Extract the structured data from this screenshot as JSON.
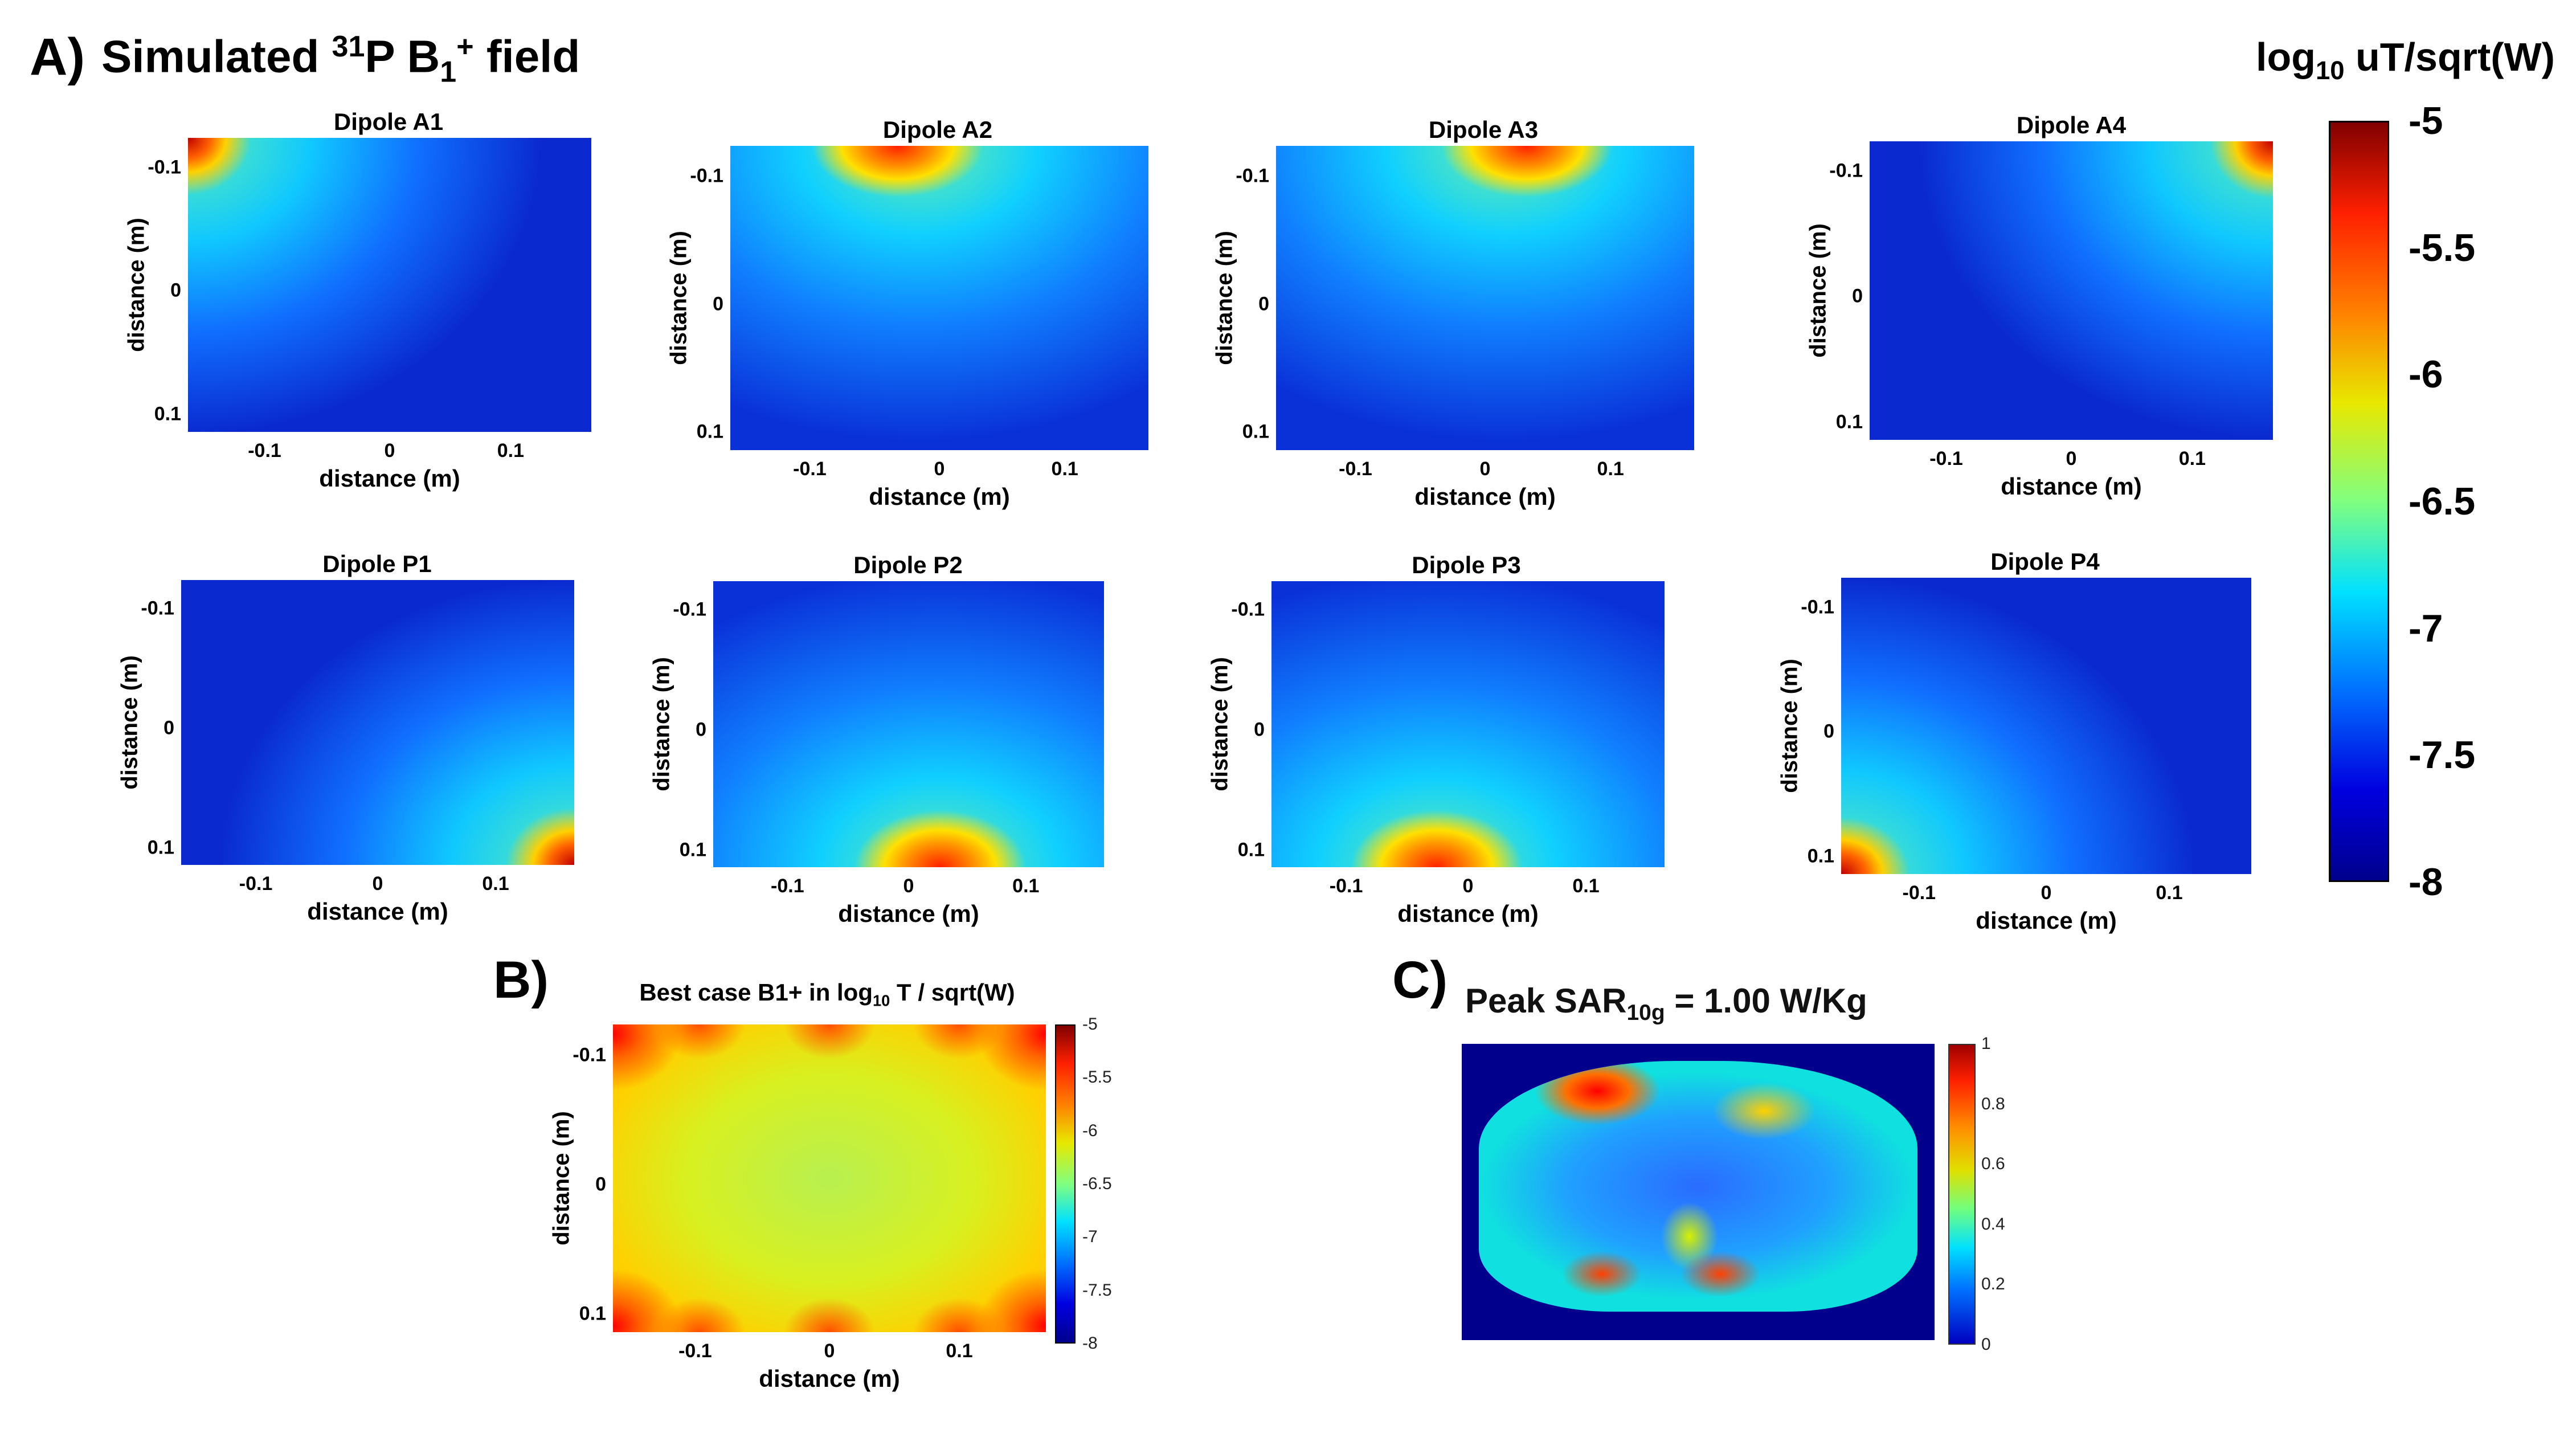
{
  "figure": {
    "panel_a": {
      "letter": "A)",
      "title_prefix": "Simulated ",
      "title_sup": "31",
      "title_mid": "P B",
      "title_sub": "1",
      "title_sup2": "+",
      "title_suffix": " field"
    },
    "panel_b": {
      "letter": "B)"
    },
    "panel_c": {
      "letter": "C)"
    }
  },
  "colorbar_main": {
    "label_prefix": "log",
    "label_sub": "10",
    "label_suffix": " uT/sqrt(W)",
    "ticks": [
      "-5",
      "-5.5",
      "-6",
      "-6.5",
      "-7",
      "-7.5",
      "-8"
    ]
  },
  "axes": {
    "xlabel": "distance (m)",
    "ylabel": "distance (m)",
    "xticks": [
      "-0.1",
      "0",
      "0.1"
    ],
    "yticks": [
      "-0.1",
      "0",
      "0.1"
    ]
  },
  "dipoles": [
    {
      "title": "Dipole A1"
    },
    {
      "title": "Dipole A2"
    },
    {
      "title": "Dipole A3"
    },
    {
      "title": "Dipole A4"
    },
    {
      "title": "Dipole P1"
    },
    {
      "title": "Dipole P2"
    },
    {
      "title": "Dipole P3"
    },
    {
      "title": "Dipole P4"
    }
  ],
  "best_case": {
    "title_prefix": "Best case B1+ in log",
    "title_sub": "10",
    "title_suffix": " T / sqrt(W)",
    "cbar_ticks": [
      "-5",
      "-5.5",
      "-6",
      "-6.5",
      "-7",
      "-7.5",
      "-8"
    ]
  },
  "sar": {
    "title_prefix": "Peak SAR",
    "title_sub": "10g",
    "title_suffix": " = 1.00 W/Kg",
    "cbar_ticks": [
      "1",
      "0.8",
      "0.6",
      "0.4",
      "0.2",
      "0"
    ]
  },
  "chart_data": [
    {
      "type": "heatmap",
      "title": "Dipole A1",
      "xlabel": "distance (m)",
      "ylabel": "distance (m)",
      "xticks": [
        -0.1,
        0,
        0.1
      ],
      "yticks": [
        -0.1,
        0,
        0.1
      ],
      "clim": [
        -8,
        -5
      ],
      "colorbar_label": "log10 uT/sqrt(W)",
      "hotspot": "top-left"
    },
    {
      "type": "heatmap",
      "title": "Dipole A2",
      "xlabel": "distance (m)",
      "ylabel": "distance (m)",
      "xticks": [
        -0.1,
        0,
        0.1
      ],
      "yticks": [
        -0.1,
        0,
        0.1
      ],
      "clim": [
        -8,
        -5
      ],
      "colorbar_label": "log10 uT/sqrt(W)",
      "hotspot": "top-center-left"
    },
    {
      "type": "heatmap",
      "title": "Dipole A3",
      "xlabel": "distance (m)",
      "ylabel": "distance (m)",
      "xticks": [
        -0.1,
        0,
        0.1
      ],
      "yticks": [
        -0.1,
        0,
        0.1
      ],
      "clim": [
        -8,
        -5
      ],
      "colorbar_label": "log10 uT/sqrt(W)",
      "hotspot": "top-center-right"
    },
    {
      "type": "heatmap",
      "title": "Dipole A4",
      "xlabel": "distance (m)",
      "ylabel": "distance (m)",
      "xticks": [
        -0.1,
        0,
        0.1
      ],
      "yticks": [
        -0.1,
        0,
        0.1
      ],
      "clim": [
        -8,
        -5
      ],
      "colorbar_label": "log10 uT/sqrt(W)",
      "hotspot": "top-right"
    },
    {
      "type": "heatmap",
      "title": "Dipole P1",
      "xlabel": "distance (m)",
      "ylabel": "distance (m)",
      "xticks": [
        -0.1,
        0,
        0.1
      ],
      "yticks": [
        -0.1,
        0,
        0.1
      ],
      "clim": [
        -8,
        -5
      ],
      "colorbar_label": "log10 uT/sqrt(W)",
      "hotspot": "bottom-right"
    },
    {
      "type": "heatmap",
      "title": "Dipole P2",
      "xlabel": "distance (m)",
      "ylabel": "distance (m)",
      "xticks": [
        -0.1,
        0,
        0.1
      ],
      "yticks": [
        -0.1,
        0,
        0.1
      ],
      "clim": [
        -8,
        -5
      ],
      "colorbar_label": "log10 uT/sqrt(W)",
      "hotspot": "bottom-center-right"
    },
    {
      "type": "heatmap",
      "title": "Dipole P3",
      "xlabel": "distance (m)",
      "ylabel": "distance (m)",
      "xticks": [
        -0.1,
        0,
        0.1
      ],
      "yticks": [
        -0.1,
        0,
        0.1
      ],
      "clim": [
        -8,
        -5
      ],
      "colorbar_label": "log10 uT/sqrt(W)",
      "hotspot": "bottom-center-left"
    },
    {
      "type": "heatmap",
      "title": "Dipole P4",
      "xlabel": "distance (m)",
      "ylabel": "distance (m)",
      "xticks": [
        -0.1,
        0,
        0.1
      ],
      "yticks": [
        -0.1,
        0,
        0.1
      ],
      "clim": [
        -8,
        -5
      ],
      "colorbar_label": "log10 uT/sqrt(W)",
      "hotspot": "bottom-left"
    },
    {
      "type": "heatmap",
      "title": "Best case B1+ in log10 T / sqrt(W)",
      "xlabel": "distance (m)",
      "ylabel": "distance (m)",
      "xticks": [
        -0.1,
        0,
        0.1
      ],
      "yticks": [
        -0.1,
        0,
        0.1
      ],
      "clim": [
        -8,
        -5
      ]
    },
    {
      "type": "heatmap",
      "title": "Peak SAR10g = 1.00 W/Kg",
      "clim": [
        0,
        1
      ],
      "peak_value": 1.0,
      "units": "W/Kg"
    }
  ]
}
